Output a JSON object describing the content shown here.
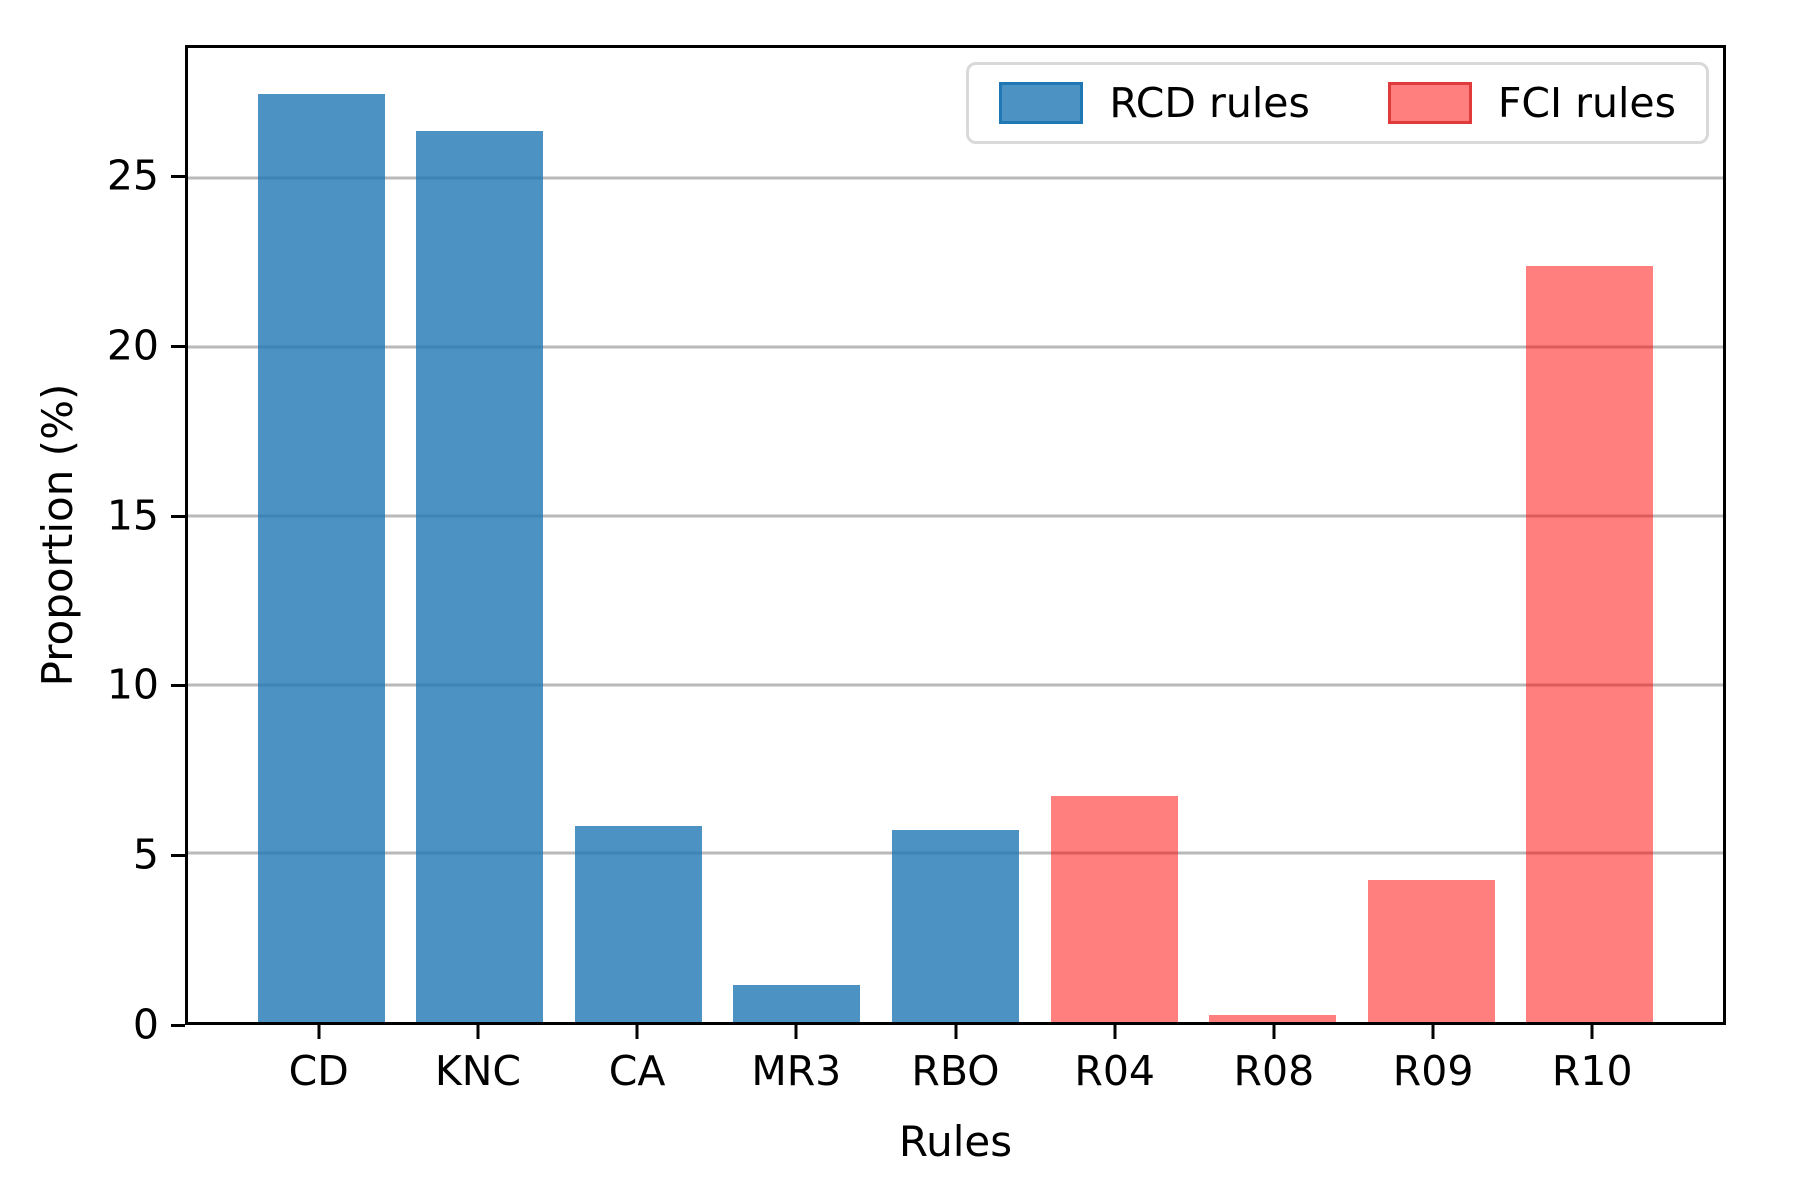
{
  "chart_data": {
    "type": "bar",
    "categories": [
      "CD",
      "KNC",
      "CA",
      "MR3",
      "RBO",
      "R04",
      "R08",
      "R09",
      "R10"
    ],
    "series": [
      {
        "name": "RCD rules",
        "categories": [
          "CD",
          "KNC",
          "CA",
          "MR3",
          "RBO"
        ],
        "values": [
          27.5,
          26.4,
          5.8,
          1.1,
          5.7
        ],
        "fill": "rgba(31,119,180,0.8)",
        "edge": "#1f77b4"
      },
      {
        "name": "FCI rules",
        "categories": [
          "R04",
          "R08",
          "R09",
          "R10"
        ],
        "values": [
          6.7,
          0.2,
          4.2,
          22.4
        ],
        "fill": "rgba(255,0,0,0.5)",
        "edge": "#e03a3a"
      }
    ],
    "xlabel": "Rules",
    "ylabel": "Proportion (%)",
    "yticks": [
      0,
      5,
      10,
      15,
      20,
      25
    ],
    "ylim": [
      0,
      28.86
    ],
    "bar_width": 0.8,
    "grid": "horizontal",
    "legend_position": "upper right",
    "colors": {
      "gridline": "#b9b9b9",
      "spine": "#000000",
      "legend_border": "#d9d9d9",
      "background": "#ffffff"
    }
  }
}
